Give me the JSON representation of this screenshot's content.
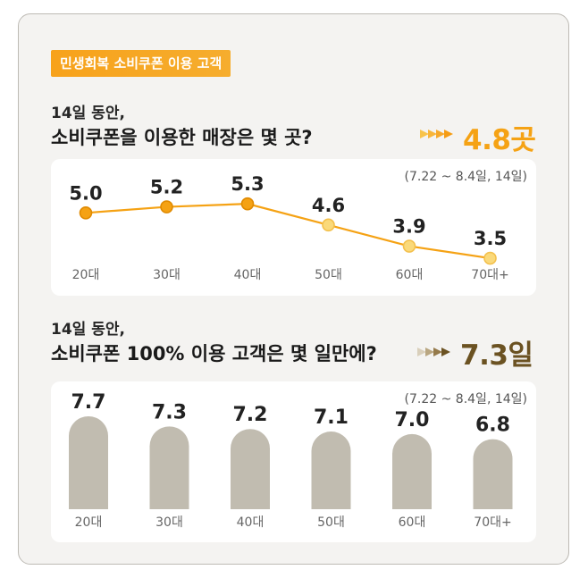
{
  "badge": "민생회복 소비쿠폰 이용 고객",
  "section1": {
    "q_line1": "14일 동안,",
    "q_line2": "소비쿠폰을 이용한 매장은 몇 곳?",
    "highlight": "4.8곳",
    "period": "(7.22 ~ 8.4일, 14일)"
  },
  "section2": {
    "q_line1": "14일 동안,",
    "q_line2": "소비쿠폰 100% 이용 고객은 몇 일만에?",
    "highlight": "7.3일",
    "period": "(7.22 ~ 8.4일, 14일)"
  },
  "colors": {
    "orange": "#f5a214",
    "orange_dark": "#e08a00",
    "orange_light": "#fad97a",
    "brown": "#6b5222",
    "bar_gray": "#c1bcb0"
  },
  "chart_data": [
    {
      "type": "line",
      "categories": [
        "20대",
        "30대",
        "40대",
        "50대",
        "60대",
        "70대+"
      ],
      "values": [
        5.0,
        5.2,
        5.3,
        4.6,
        3.9,
        3.5
      ],
      "value_labels": [
        "5.0",
        "5.2",
        "5.3",
        "4.6",
        "3.9",
        "3.5"
      ],
      "ylim": [
        3.0,
        5.6
      ]
    },
    {
      "type": "bar",
      "categories": [
        "20대",
        "30대",
        "40대",
        "50대",
        "60대",
        "70대+"
      ],
      "values": [
        7.7,
        7.3,
        7.2,
        7.1,
        7.0,
        6.8
      ],
      "value_labels": [
        "7.7",
        "7.3",
        "7.2",
        "7.1",
        "7.0",
        "6.8"
      ],
      "ylim": [
        5.8,
        7.7
      ]
    }
  ]
}
